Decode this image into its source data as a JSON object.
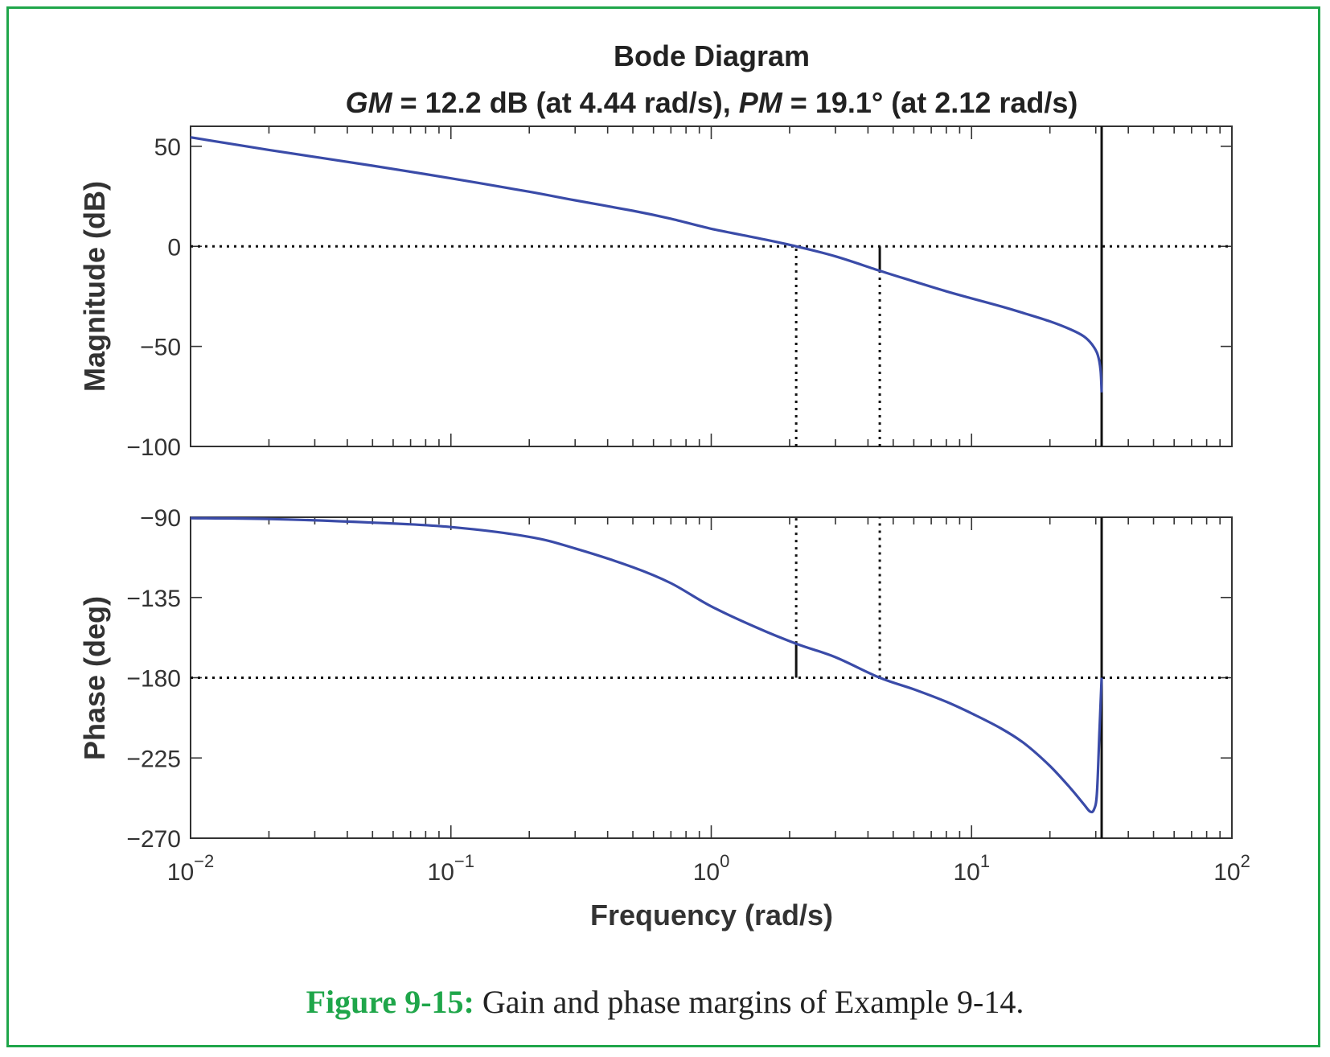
{
  "colors": {
    "frame": "#1fa64a",
    "curve": "#3a4ba8",
    "axes": "#333333",
    "margin_lines": "#111111",
    "caption_label": "#1fa64a"
  },
  "caption": {
    "label": "Figure 9-15:",
    "text": " Gain and phase margins of Example 9-14."
  },
  "chart_data": [
    {
      "type": "line",
      "title": "Bode Diagram",
      "subtitle_parts": [
        {
          "text": "GM",
          "italic": true
        },
        {
          "text": " = 12.2 dB (at 4.44 rad/s), ",
          "italic": false
        },
        {
          "text": "PM",
          "italic": true
        },
        {
          "text": " = 19.1° (at 2.12 rad/s)",
          "italic": false
        }
      ],
      "ylabel": "Magnitude (dB)",
      "xscale": "log",
      "xlim": [
        0.01,
        100
      ],
      "ylim": [
        -100,
        60
      ],
      "yticks": [
        50,
        0,
        -50,
        -100
      ],
      "ytick_labels": [
        "50",
        "0",
        "−50",
        "−100"
      ],
      "reference_line_y": 0,
      "margin_markers": [
        {
          "x": 2.12,
          "style": "dotted",
          "from": -100,
          "to": 0
        },
        {
          "x": 4.44,
          "style": "dotted",
          "from": -100,
          "to": -12.2
        },
        {
          "x": 4.44,
          "style": "solid",
          "from": -12.2,
          "to": 0
        },
        {
          "x": 31.6,
          "style": "solid",
          "from": -100,
          "to": 60
        }
      ],
      "series": [
        {
          "x": [
            0.01,
            0.02,
            0.05,
            0.1,
            0.2,
            0.3,
            0.5,
            0.7,
            1.0,
            1.5,
            2.12,
            3.0,
            4.44,
            6.0,
            8.0,
            10.0,
            13.0,
            16.0,
            20.0,
            24.0,
            27.0,
            29.0,
            30.5,
            31.3,
            31.6
          ],
          "y": [
            54.5,
            48.2,
            40.3,
            34.0,
            27.3,
            23.0,
            17.8,
            13.8,
            8.8,
            4.2,
            0.0,
            -5.0,
            -12.2,
            -17.5,
            -22.5,
            -26.0,
            -30.0,
            -33.5,
            -37.5,
            -41.5,
            -45.0,
            -49.0,
            -54.0,
            -62.0,
            -73.0
          ]
        }
      ]
    },
    {
      "type": "line",
      "xlabel": "Frequency (rad/s)",
      "ylabel": "Phase (deg)",
      "xscale": "log",
      "xlim": [
        0.01,
        100
      ],
      "ylim": [
        -270,
        -90
      ],
      "yticks": [
        -90,
        -135,
        -180,
        -225,
        -270
      ],
      "ytick_labels": [
        "−90",
        "−135",
        "−180",
        "−225",
        "−270"
      ],
      "xticks": [
        0.01,
        0.1,
        1,
        10,
        100
      ],
      "xtick_labels": [
        {
          "base": "10",
          "exp": "−2"
        },
        {
          "base": "10",
          "exp": "−1"
        },
        {
          "base": "10",
          "exp": "0"
        },
        {
          "base": "10",
          "exp": "1"
        },
        {
          "base": "10",
          "exp": "2"
        }
      ],
      "reference_line_y": -180,
      "margin_markers": [
        {
          "x": 2.12,
          "style": "dotted",
          "from": -160.9,
          "to": -90
        },
        {
          "x": 2.12,
          "style": "solid",
          "from": -180,
          "to": -160.9
        },
        {
          "x": 4.44,
          "style": "dotted",
          "from": -180,
          "to": -90
        },
        {
          "x": 31.6,
          "style": "solid",
          "from": -270,
          "to": -90
        }
      ],
      "series": [
        {
          "x": [
            0.01,
            0.02,
            0.05,
            0.1,
            0.2,
            0.3,
            0.5,
            0.7,
            1.0,
            1.5,
            2.12,
            3.0,
            4.44,
            6.0,
            8.0,
            10.0,
            13.0,
            16.0,
            20.0,
            24.0,
            27.0,
            28.5,
            29.5,
            30.3,
            31.0,
            31.6
          ],
          "y": [
            -90.5,
            -91,
            -93,
            -95.5,
            -101,
            -107.5,
            -118,
            -127,
            -140,
            -152,
            -160.9,
            -168.5,
            -180,
            -186.5,
            -193.5,
            -200,
            -208.5,
            -217,
            -229.5,
            -242,
            -251,
            -255,
            -254,
            -245,
            -210,
            -180
          ]
        }
      ]
    }
  ]
}
